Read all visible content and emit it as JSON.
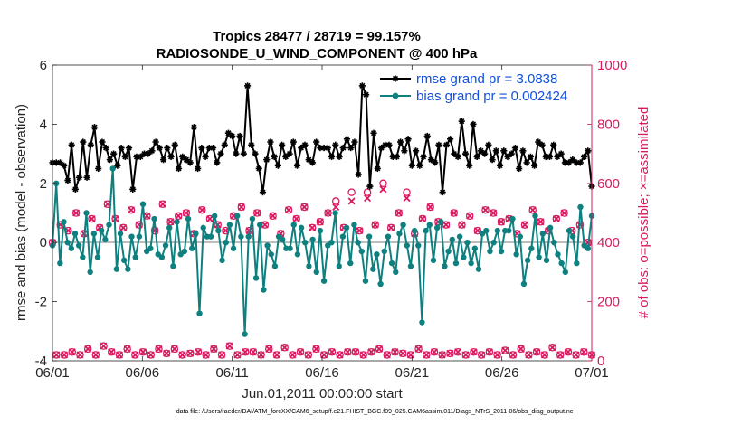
{
  "chart_data": {
    "type": "line",
    "title": "Tropics 28477 / 28719 = 99.157%",
    "subtitle": "RADIOSONDE_U_WIND_COMPONENT @ 400 hPa",
    "xlabel": "Jun.01,2011 00:00:00 start",
    "ylabel": "rmse and bias (model - observation)",
    "ylabel_right": "# of obs: o=possible; ×=assimilated",
    "footer": "data file: /Users/raeder/DAI/ATM_forcXX/CAM6_setup/f.e21.FHIST_BGC.f09_025.CAM6assim.011/Diags_NTrS_2011-06/obs_diag_output.nc",
    "x_tick_labels": [
      "06/01",
      "06/06",
      "06/11",
      "06/16",
      "06/21",
      "06/26",
      "07/01"
    ],
    "xlim": [
      0,
      30
    ],
    "ylim": [
      -4,
      6
    ],
    "y_ticks": [
      -4,
      -2,
      0,
      2,
      4,
      6
    ],
    "y_tick_labels": [
      "-4",
      "-2",
      "0",
      "2",
      "4",
      "6"
    ],
    "ylim_right": [
      0,
      1000
    ],
    "y_right_ticks": [
      0,
      200,
      400,
      600,
      800,
      1000
    ],
    "y_right_tick_labels": [
      "0",
      "200",
      "400",
      "600",
      "800",
      "1000"
    ],
    "legend_position": "top-right",
    "series": [
      {
        "name": "rmse grand pr = 3.0838",
        "axis": "left",
        "color": "#000000",
        "marker": "asterisk",
        "values": [
          2.7,
          2.7,
          2.7,
          2.6,
          2.1,
          3.3,
          1.8,
          2.2,
          3.4,
          2.2,
          3.3,
          3.9,
          2.5,
          3.4,
          3.2,
          2.8,
          3.0,
          2.6,
          3.2,
          2.9,
          3.2,
          1.8,
          2.9,
          2.9,
          3.0,
          3.0,
          3.1,
          3.4,
          3.2,
          2.8,
          3.2,
          2.9,
          3.3,
          2.5,
          2.9,
          2.8,
          2.7,
          3.9,
          2.5,
          3.2,
          2.9,
          3.2,
          3.2,
          2.7,
          3.0,
          3.3,
          3.7,
          3.6,
          3.0,
          3.6,
          3.0,
          5.3,
          3.3,
          3.0,
          2.5,
          1.7,
          2.8,
          3.4,
          2.9,
          2.6,
          3.3,
          2.9,
          3.0,
          3.4,
          2.6,
          3.2,
          3.3,
          2.8,
          2.7,
          3.4,
          3.2,
          3.2,
          3.2,
          2.9,
          3.3,
          2.9,
          3.2,
          3.5,
          3.2,
          3.4,
          2.3,
          5.3,
          5.0,
          1.9,
          3.7,
          2.5,
          3.2,
          3.3,
          3.3,
          2.9,
          2.9,
          3.4,
          3.1,
          3.5,
          2.6,
          3.1,
          2.6,
          2.9,
          3.6,
          2.8,
          2.7,
          3.3,
          1.7,
          3.3,
          3.5,
          3.0,
          2.9,
          4.1,
          3.0,
          2.6,
          4.0,
          2.9,
          3.1,
          3.0,
          3.3,
          2.8,
          3.1,
          2.6,
          3.1,
          2.9,
          3.0,
          3.2,
          2.5,
          3.1,
          2.7,
          2.9,
          2.6,
          3.4,
          3.3,
          2.9,
          2.9,
          3.3,
          2.9,
          3.0,
          2.7,
          2.7,
          2.8,
          2.7,
          2.7,
          2.9,
          3.1,
          1.9
        ]
      },
      {
        "name": "bias grand pr = 0.002424",
        "axis": "left",
        "color": "#0e8080",
        "marker": "dot",
        "values": [
          -0.1,
          2.0,
          -0.7,
          0.7,
          0.0,
          -0.2,
          0.3,
          -0.1,
          -0.5,
          1.0,
          -1.0,
          0.3,
          -0.5,
          0.4,
          0.1,
          0.6,
          2.5,
          -0.9,
          0.3,
          -0.6,
          -0.9,
          0.2,
          -0.5,
          0.2,
          1.3,
          -0.3,
          -0.2,
          0.8,
          -0.4,
          -0.5,
          -0.1,
          0.5,
          -0.8,
          0.7,
          -0.4,
          -0.3,
          0.8,
          -0.2,
          0.3,
          -2.4,
          0.5,
          0.2,
          0.2,
          0.9,
          0.4,
          -0.6,
          0.0,
          0.6,
          -0.2,
          0.9,
          0.2,
          -3.1,
          0.2,
          0.8,
          -1.2,
          0.6,
          -1.6,
          -0.1,
          -0.4,
          -0.8,
          0.2,
          0.1,
          -0.2,
          -0.2,
          0.6,
          -0.4,
          0.5,
          0.0,
          -0.8,
          0.1,
          -1.0,
          0.4,
          -1.3,
          -0.1,
          0.0,
          1.0,
          -0.8,
          0.2,
          0.5,
          -0.7,
          0.6,
          0.0,
          -0.3,
          -1.3,
          0.2,
          -0.9,
          -0.4,
          -1.4,
          -0.3,
          0.2,
          -0.7,
          -1.0,
          0.3,
          0.6,
          -0.1,
          -0.8,
          0.4,
          -0.1,
          -2.7,
          0.4,
          0.6,
          -0.6,
          0.5,
          0.7,
          -0.8,
          -0.3,
          0.1,
          -0.7,
          0.2,
          -0.5,
          0.0,
          -0.7,
          -0.2,
          -0.9,
          0.3,
          0.4,
          -0.3,
          0.0,
          0.4,
          -0.3,
          0.4,
          0.4,
          0.8,
          -0.4,
          0.2,
          -1.4,
          -0.6,
          -0.2,
          0.9,
          -0.5,
          0.3,
          -0.6,
          0.5,
          0.0,
          -0.4,
          -0.7,
          -1.0,
          0.4,
          0.2,
          -0.7,
          1.2,
          -0.1,
          -0.2,
          0.9
        ]
      },
      {
        "name": "obs possible",
        "axis": "right",
        "color": "#d81b60",
        "marker": "circle",
        "values": [
          400,
          20,
          460,
          20,
          440,
          30,
          500,
          20,
          430,
          40,
          480,
          20,
          450,
          50,
          530,
          30,
          480,
          20,
          450,
          40,
          510,
          20,
          460,
          30,
          490,
          20,
          440,
          40,
          530,
          25,
          470,
          40,
          490,
          20,
          500,
          25,
          430,
          30,
          510,
          20,
          480,
          40,
          460,
          20,
          440,
          50,
          490,
          20,
          520,
          30,
          440,
          30,
          500,
          20,
          460,
          40,
          490,
          20,
          430,
          45,
          510,
          20,
          480,
          30,
          520,
          20,
          450,
          40,
          470,
          20,
          500,
          30,
          540,
          20,
          450,
          30,
          570,
          30,
          440,
          20,
          570,
          30,
          460,
          40,
          600,
          20,
          450,
          30,
          500,
          25,
          570,
          20,
          430,
          40,
          480,
          20,
          520,
          30,
          470,
          20,
          460,
          25,
          500,
          30,
          460,
          20,
          490,
          30,
          440,
          20,
          510,
          30,
          500,
          20,
          470,
          35,
          480,
          20,
          430,
          40,
          460,
          20,
          510,
          30,
          470,
          20,
          440,
          45,
          480,
          20,
          500,
          30,
          440,
          20,
          460,
          30,
          400,
          20
        ]
      },
      {
        "name": "obs assimilated",
        "axis": "right",
        "color": "#d81b60",
        "marker": "x",
        "values": [
          400,
          20,
          460,
          20,
          440,
          30,
          500,
          20,
          430,
          40,
          480,
          20,
          450,
          50,
          530,
          30,
          480,
          20,
          450,
          40,
          510,
          20,
          460,
          30,
          490,
          20,
          440,
          40,
          530,
          25,
          470,
          40,
          490,
          20,
          500,
          25,
          430,
          30,
          510,
          20,
          480,
          40,
          460,
          20,
          440,
          50,
          490,
          20,
          520,
          30,
          440,
          30,
          500,
          20,
          460,
          40,
          490,
          20,
          430,
          45,
          510,
          20,
          480,
          30,
          520,
          20,
          450,
          40,
          470,
          20,
          500,
          30,
          520,
          20,
          450,
          30,
          540,
          30,
          440,
          20,
          550,
          30,
          460,
          40,
          580,
          20,
          450,
          30,
          500,
          25,
          550,
          20,
          430,
          40,
          480,
          20,
          520,
          30,
          470,
          20,
          460,
          25,
          500,
          30,
          460,
          20,
          490,
          30,
          440,
          20,
          510,
          30,
          500,
          20,
          470,
          35,
          480,
          20,
          430,
          40,
          460,
          20,
          510,
          30,
          470,
          20,
          440,
          45,
          480,
          20,
          500,
          30,
          440,
          20,
          460,
          30,
          400,
          20
        ]
      }
    ]
  }
}
